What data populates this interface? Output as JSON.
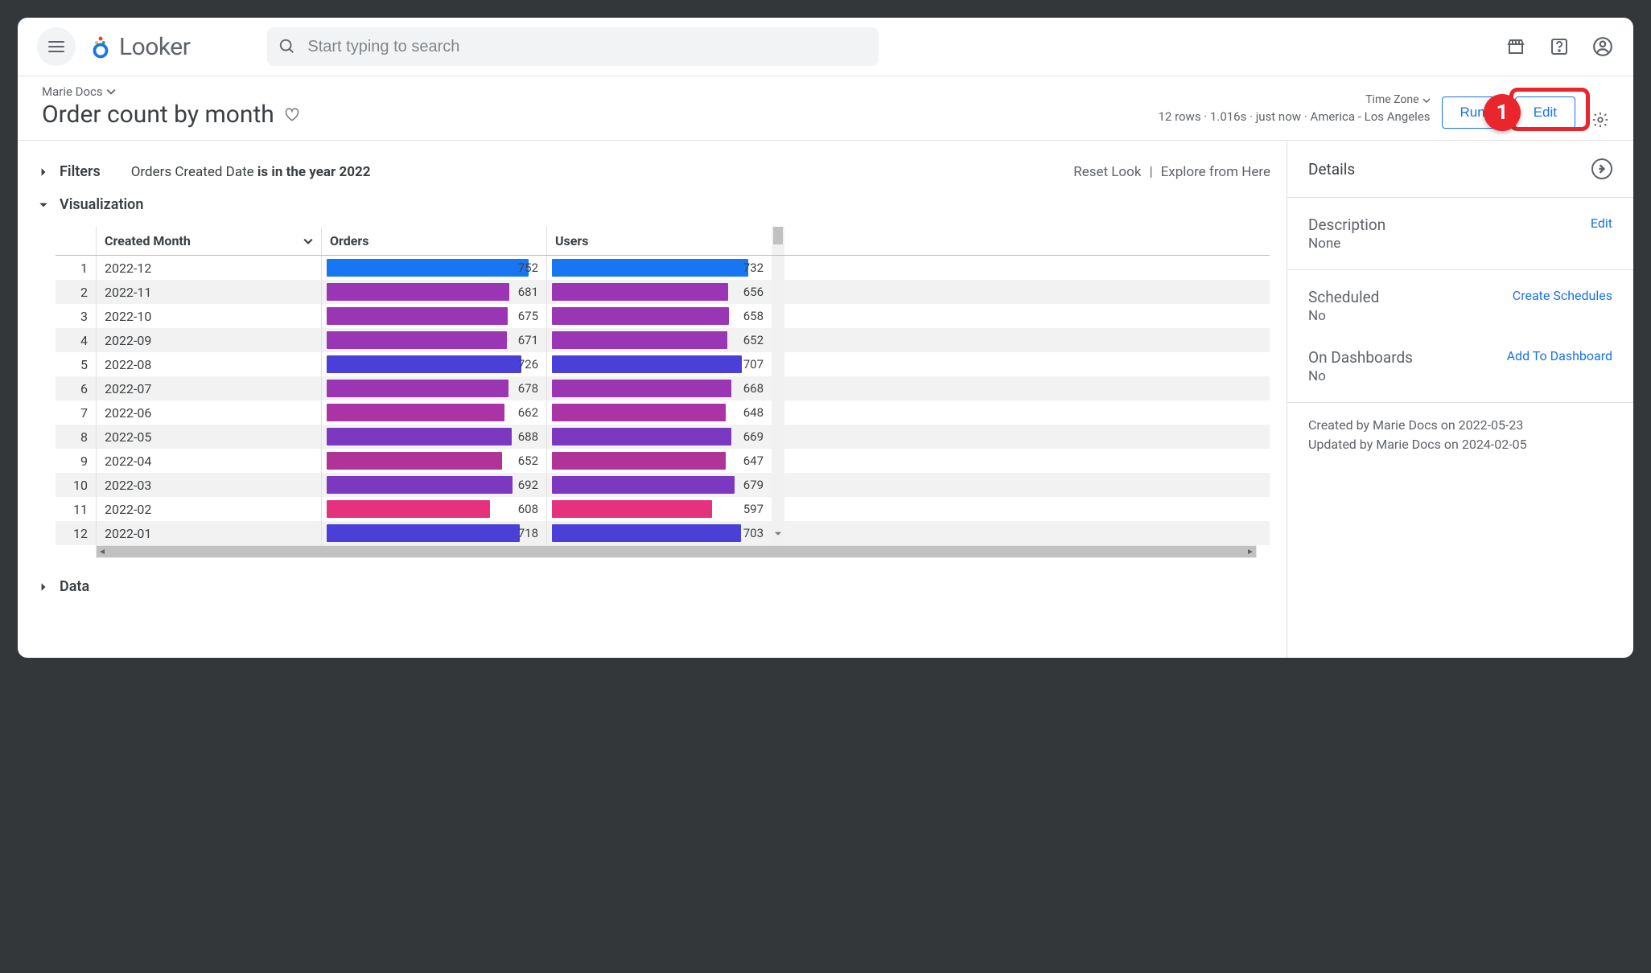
{
  "topbar": {
    "search_placeholder": "Start typing to search",
    "logo_text": "Looker"
  },
  "breadcrumb": "Marie Docs",
  "look_title": "Order count by month",
  "status": {
    "timezone_label": "Time Zone",
    "line": "12 rows · 1.016s · just now · America - Los Angeles",
    "run_label": "Run",
    "edit_label": "Edit"
  },
  "callout_number": "1",
  "filters": {
    "section_label": "Filters",
    "text_prefix": "Orders Created Date ",
    "text_bold": "is in the year 2022",
    "reset_label": "Reset Look",
    "explore_label": "Explore from Here"
  },
  "visualization": {
    "section_label": "Visualization",
    "columns": [
      "Created Month",
      "Orders",
      "Users"
    ],
    "max_value": 800,
    "rows": [
      {
        "n": 1,
        "month": "2022-12",
        "orders": 752,
        "users": 732,
        "color": "#1976f2"
      },
      {
        "n": 2,
        "month": "2022-11",
        "orders": 681,
        "users": 656,
        "color": "#9a36b4"
      },
      {
        "n": 3,
        "month": "2022-10",
        "orders": 675,
        "users": 658,
        "color": "#9a36b4"
      },
      {
        "n": 4,
        "month": "2022-09",
        "orders": 671,
        "users": 652,
        "color": "#9a36b4"
      },
      {
        "n": 5,
        "month": "2022-08",
        "orders": 726,
        "users": 707,
        "color": "#4a3fd6"
      },
      {
        "n": 6,
        "month": "2022-07",
        "orders": 678,
        "users": 668,
        "color": "#9a36b4"
      },
      {
        "n": 7,
        "month": "2022-06",
        "orders": 662,
        "users": 648,
        "color": "#aa34a6"
      },
      {
        "n": 8,
        "month": "2022-05",
        "orders": 688,
        "users": 669,
        "color": "#7d38c2"
      },
      {
        "n": 9,
        "month": "2022-04",
        "orders": 652,
        "users": 647,
        "color": "#b03398"
      },
      {
        "n": 10,
        "month": "2022-03",
        "orders": 692,
        "users": 679,
        "color": "#7d38c2"
      },
      {
        "n": 11,
        "month": "2022-02",
        "orders": 608,
        "users": 597,
        "color": "#e6317c"
      },
      {
        "n": 12,
        "month": "2022-01",
        "orders": 718,
        "users": 703,
        "color": "#4a3fd6"
      }
    ]
  },
  "data_section_label": "Data",
  "side": {
    "details_label": "Details",
    "description_label": "Description",
    "description_value": "None",
    "description_action": "Edit",
    "scheduled_label": "Scheduled",
    "scheduled_value": "No",
    "scheduled_action": "Create Schedules",
    "dashboards_label": "On Dashboards",
    "dashboards_value": "No",
    "dashboards_action": "Add To Dashboard",
    "created_line": "Created by Marie Docs on 2022-05-23",
    "updated_line": "Updated by Marie Docs on 2024-02-05"
  },
  "colors": {
    "link": "#1a73e8",
    "text": "#3c4043",
    "muted": "#5f6368"
  }
}
